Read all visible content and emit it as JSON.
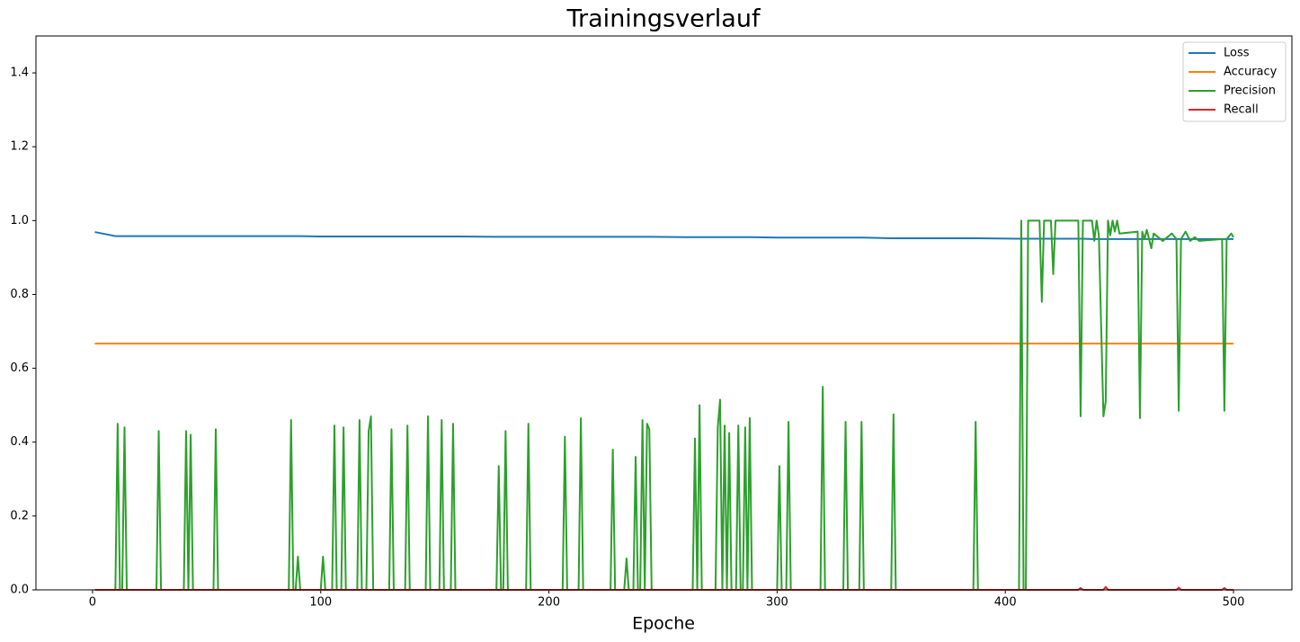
{
  "chart_data": {
    "type": "line",
    "title": "Trainingsverlauf",
    "xlabel": "Epoche",
    "x": [
      1,
      10,
      11,
      12,
      13,
      14,
      15,
      28,
      29,
      30,
      40,
      41,
      42,
      43,
      44,
      53,
      54,
      55,
      86,
      87,
      88,
      89,
      90,
      91,
      100,
      101,
      102,
      105,
      106,
      107,
      109,
      110,
      111,
      116,
      117,
      118,
      120,
      121,
      122,
      123,
      130,
      131,
      132,
      137,
      138,
      139,
      146,
      147,
      148,
      152,
      153,
      154,
      157,
      158,
      159,
      177,
      178,
      179,
      180,
      181,
      182,
      190,
      191,
      192,
      206,
      207,
      208,
      213,
      214,
      215,
      227,
      228,
      229,
      233,
      234,
      235,
      237,
      238,
      239,
      240,
      241,
      242,
      243,
      244,
      245,
      263,
      264,
      265,
      266,
      267,
      273,
      274,
      275,
      276,
      277,
      278,
      279,
      280,
      282,
      283,
      284,
      285,
      286,
      287,
      288,
      289,
      300,
      301,
      302,
      304,
      305,
      306,
      319,
      320,
      321,
      329,
      330,
      331,
      336,
      337,
      338,
      350,
      351,
      352,
      386,
      387,
      388,
      406,
      407,
      408,
      409,
      410,
      415,
      416,
      417,
      420,
      421,
      422,
      432,
      433,
      434,
      438,
      439,
      440,
      441,
      443,
      444,
      445,
      446,
      447,
      448,
      449,
      450,
      458,
      459,
      460,
      461,
      462,
      464,
      465,
      469,
      473,
      475,
      476,
      477,
      479,
      481,
      483,
      485,
      495,
      496,
      497,
      499,
      500
    ],
    "series": [
      {
        "name": "Loss",
        "color": "#1f77b4",
        "values": [
          0.969,
          0.958,
          0.958,
          0.958,
          0.958,
          0.958,
          0.958,
          0.958,
          0.958,
          0.958,
          0.958,
          0.958,
          0.958,
          0.958,
          0.958,
          0.958,
          0.958,
          0.958,
          0.958,
          0.958,
          0.958,
          0.958,
          0.958,
          0.958,
          0.957,
          0.957,
          0.957,
          0.957,
          0.957,
          0.957,
          0.957,
          0.957,
          0.957,
          0.957,
          0.957,
          0.957,
          0.957,
          0.957,
          0.957,
          0.957,
          0.957,
          0.957,
          0.957,
          0.957,
          0.957,
          0.957,
          0.957,
          0.957,
          0.957,
          0.957,
          0.957,
          0.957,
          0.957,
          0.957,
          0.957,
          0.956,
          0.956,
          0.956,
          0.956,
          0.956,
          0.956,
          0.956,
          0.956,
          0.956,
          0.956,
          0.956,
          0.956,
          0.956,
          0.956,
          0.956,
          0.956,
          0.956,
          0.956,
          0.956,
          0.956,
          0.956,
          0.956,
          0.956,
          0.956,
          0.956,
          0.956,
          0.956,
          0.956,
          0.956,
          0.956,
          0.955,
          0.955,
          0.955,
          0.955,
          0.955,
          0.955,
          0.955,
          0.955,
          0.955,
          0.955,
          0.955,
          0.955,
          0.955,
          0.955,
          0.955,
          0.955,
          0.955,
          0.955,
          0.955,
          0.955,
          0.955,
          0.954,
          0.954,
          0.954,
          0.954,
          0.954,
          0.954,
          0.954,
          0.954,
          0.954,
          0.954,
          0.954,
          0.954,
          0.954,
          0.954,
          0.954,
          0.952,
          0.952,
          0.952,
          0.952,
          0.952,
          0.952,
          0.951,
          0.951,
          0.951,
          0.951,
          0.951,
          0.951,
          0.951,
          0.951,
          0.951,
          0.951,
          0.951,
          0.951,
          0.951,
          0.951,
          0.95,
          0.95,
          0.95,
          0.95,
          0.95,
          0.95,
          0.95,
          0.95,
          0.95,
          0.95,
          0.95,
          0.95,
          0.95,
          0.95,
          0.95,
          0.95,
          0.95,
          0.95,
          0.95,
          0.95,
          0.95,
          0.95,
          0.95,
          0.95,
          0.95,
          0.95,
          0.95,
          0.95,
          0.95,
          0.95,
          0.95,
          0.95,
          0.95
        ]
      },
      {
        "name": "Accuracy",
        "color": "#ff7f0e",
        "values": [
          0.667,
          0.667,
          0.667,
          0.667,
          0.667,
          0.667,
          0.667,
          0.667,
          0.667,
          0.667,
          0.667,
          0.667,
          0.667,
          0.667,
          0.667,
          0.667,
          0.667,
          0.667,
          0.667,
          0.667,
          0.667,
          0.667,
          0.667,
          0.667,
          0.667,
          0.667,
          0.667,
          0.667,
          0.667,
          0.667,
          0.667,
          0.667,
          0.667,
          0.667,
          0.667,
          0.667,
          0.667,
          0.667,
          0.667,
          0.667,
          0.667,
          0.667,
          0.667,
          0.667,
          0.667,
          0.667,
          0.667,
          0.667,
          0.667,
          0.667,
          0.667,
          0.667,
          0.667,
          0.667,
          0.667,
          0.667,
          0.667,
          0.667,
          0.667,
          0.667,
          0.667,
          0.667,
          0.667,
          0.667,
          0.667,
          0.667,
          0.667,
          0.667,
          0.667,
          0.667,
          0.667,
          0.667,
          0.667,
          0.667,
          0.667,
          0.667,
          0.667,
          0.667,
          0.667,
          0.667,
          0.667,
          0.667,
          0.667,
          0.667,
          0.667,
          0.667,
          0.667,
          0.667,
          0.667,
          0.667,
          0.667,
          0.667,
          0.667,
          0.667,
          0.667,
          0.667,
          0.667,
          0.667,
          0.667,
          0.667,
          0.667,
          0.667,
          0.667,
          0.667,
          0.667,
          0.667,
          0.667,
          0.667,
          0.667,
          0.667,
          0.667,
          0.667,
          0.667,
          0.667,
          0.667,
          0.667,
          0.667,
          0.667,
          0.667,
          0.667,
          0.667,
          0.667,
          0.667,
          0.667,
          0.667,
          0.667,
          0.667,
          0.667,
          0.667,
          0.667,
          0.667,
          0.667,
          0.667,
          0.667,
          0.667,
          0.667,
          0.667,
          0.667,
          0.667,
          0.667,
          0.667,
          0.667,
          0.667,
          0.667,
          0.667,
          0.667,
          0.667,
          0.667,
          0.667,
          0.667,
          0.667,
          0.667,
          0.667,
          0.667,
          0.667,
          0.667,
          0.667,
          0.667,
          0.667,
          0.667,
          0.667,
          0.667,
          0.667,
          0.667,
          0.667,
          0.667,
          0.667,
          0.667,
          0.667,
          0.667,
          0.667,
          0.667,
          0.667,
          0.667
        ]
      },
      {
        "name": "Precision",
        "color": "#2ca02c",
        "values": [
          0,
          0,
          0.45,
          0,
          0,
          0.44,
          0,
          0,
          0.43,
          0,
          0,
          0.43,
          0,
          0.42,
          0,
          0,
          0.435,
          0,
          0,
          0.46,
          0,
          0,
          0.09,
          0,
          0,
          0.09,
          0,
          0,
          0.445,
          0,
          0,
          0.44,
          0,
          0,
          0.46,
          0,
          0,
          0.43,
          0.47,
          0,
          0,
          0.435,
          0,
          0,
          0.445,
          0,
          0,
          0.47,
          0,
          0,
          0.46,
          0,
          0,
          0.45,
          0,
          0,
          0.335,
          0,
          0,
          0.43,
          0,
          0,
          0.45,
          0,
          0,
          0.415,
          0,
          0,
          0.465,
          0,
          0,
          0.38,
          0,
          0,
          0.085,
          0,
          0,
          0.36,
          0,
          0,
          0.46,
          0,
          0.45,
          0.435,
          0,
          0,
          0.41,
          0,
          0.5,
          0,
          0,
          0.44,
          0.515,
          0,
          0.445,
          0,
          0.425,
          0,
          0,
          0.445,
          0,
          0,
          0.44,
          0,
          0.465,
          0,
          0,
          0.335,
          0,
          0,
          0.455,
          0,
          0,
          0.55,
          0,
          0,
          0.455,
          0,
          0,
          0.455,
          0,
          0,
          0.475,
          0,
          0,
          0.455,
          0,
          0,
          1,
          0,
          0,
          1,
          1,
          0.78,
          1,
          1,
          0.855,
          1,
          1,
          0.47,
          1,
          1,
          0.945,
          1,
          0.96,
          0.47,
          0.51,
          1,
          0.96,
          1,
          0.97,
          1,
          0.965,
          0.97,
          0.465,
          0.97,
          0.95,
          0.975,
          0.925,
          0.965,
          0.945,
          0.965,
          0.95,
          0.485,
          0.95,
          0.97,
          0.945,
          0.955,
          0.945,
          0.95,
          0.485,
          0.95,
          0.965,
          0.955
        ]
      },
      {
        "name": "Recall",
        "color": "#d62728",
        "values": [
          0,
          0,
          0,
          0,
          0,
          0,
          0,
          0,
          0,
          0,
          0,
          0,
          0,
          0,
          0,
          0,
          0,
          0,
          0,
          0,
          0,
          0,
          0,
          0,
          0,
          0,
          0,
          0,
          0,
          0,
          0,
          0,
          0,
          0,
          0,
          0,
          0,
          0,
          0,
          0,
          0,
          0,
          0,
          0,
          0,
          0,
          0,
          0,
          0,
          0,
          0,
          0,
          0,
          0,
          0,
          0,
          0,
          0,
          0,
          0,
          0,
          0,
          0,
          0,
          0,
          0,
          0,
          0,
          0,
          0,
          0,
          0,
          0,
          0,
          0,
          0,
          0,
          0,
          0,
          0,
          0,
          0,
          0,
          0,
          0,
          0,
          0,
          0,
          0,
          0,
          0,
          0,
          0,
          0,
          0,
          0,
          0,
          0,
          0,
          0,
          0,
          0,
          0,
          0,
          0,
          0,
          0,
          0,
          0,
          0,
          0,
          0,
          0,
          0,
          0,
          0,
          0,
          0,
          0,
          0,
          0,
          0,
          0,
          0,
          0,
          0,
          0,
          0,
          0,
          0,
          0,
          0,
          0,
          0,
          0,
          0,
          0,
          0,
          0,
          0.005,
          0,
          0,
          0,
          0,
          0,
          0,
          0.008,
          0,
          0,
          0,
          0,
          0,
          0,
          0,
          0,
          0,
          0,
          0,
          0,
          0,
          0,
          0,
          0,
          0.006,
          0,
          0,
          0,
          0,
          0,
          0,
          0.005,
          0,
          0,
          0
        ]
      }
    ],
    "xlim": [
      -24.8,
      525.6
    ],
    "xticks": [
      0,
      100,
      200,
      300,
      400,
      500
    ],
    "ylim": [
      0,
      1.5
    ],
    "yticks": [
      {
        "value": 0,
        "label": "0.0"
      },
      0.2,
      0.4,
      0.6,
      0.8,
      {
        "value": 1,
        "label": "1.0"
      },
      1.2,
      1.4
    ],
    "grid": false,
    "legend": "upper right"
  }
}
